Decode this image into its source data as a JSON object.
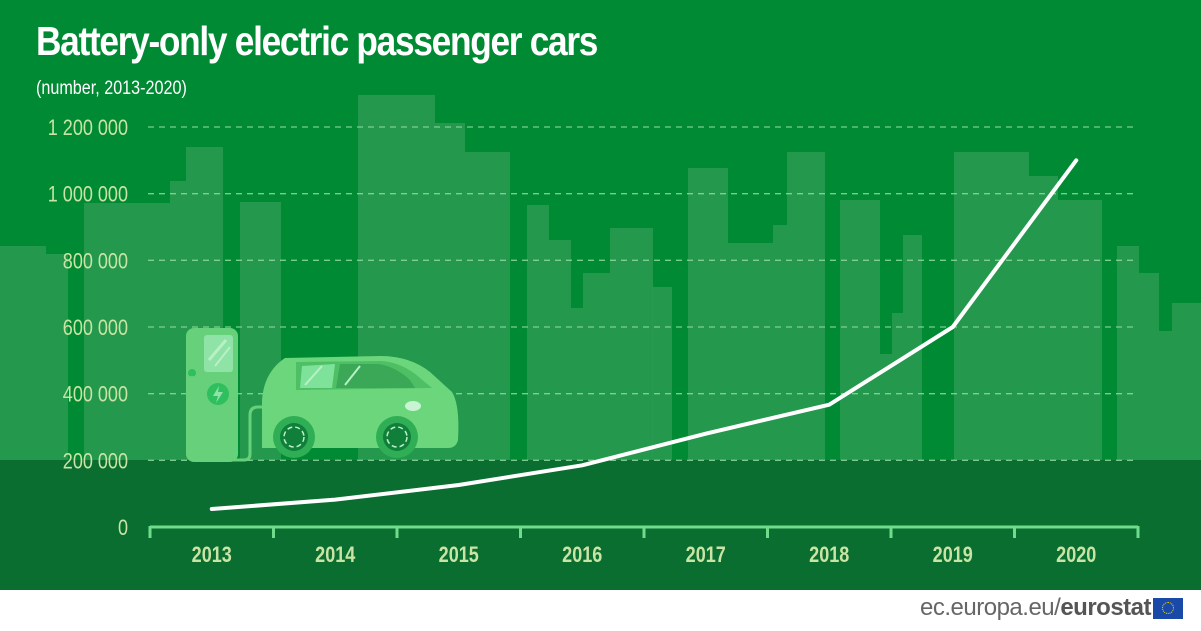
{
  "header": {
    "title": "Battery-only electric passenger cars",
    "subtitle": "(number, 2013-2020)"
  },
  "footer": {
    "site": "ec.europa.eu/",
    "brand": "eurostat",
    "flag_icon": "eu-flag-icon"
  },
  "colors": {
    "background": "#008a34",
    "background_lower": "#0a6e30",
    "buildings": "#2a9a52",
    "line": "#ffffff",
    "axis": "#6fdc8c",
    "tick_labels": "#c9e4a4",
    "gridline": "#8fd9a0"
  },
  "illustration": {
    "charging_station_icon": "charging-station-icon",
    "car_icon": "electric-car-icon",
    "skyline": "city-skyline-background"
  },
  "chart_data": {
    "type": "line",
    "title": "Battery-only electric passenger cars",
    "subtitle": "(number, 2013-2020)",
    "xlabel": "",
    "ylabel": "",
    "categories": [
      "2013",
      "2014",
      "2015",
      "2016",
      "2017",
      "2018",
      "2019",
      "2020"
    ],
    "series": [
      {
        "name": "Battery-only electric passenger cars",
        "values": [
          54000,
          82000,
          126000,
          185000,
          280000,
          367000,
          600000,
          1100000
        ]
      }
    ],
    "ylim": [
      0,
      1200000
    ],
    "yticks": [
      0,
      200000,
      400000,
      600000,
      800000,
      1000000,
      1200000
    ],
    "ytick_labels": [
      "0",
      "200 000",
      "400 000",
      "600 000",
      "800 000",
      "1 000 000",
      "1 200 000"
    ],
    "grid": true,
    "legend": "none"
  }
}
